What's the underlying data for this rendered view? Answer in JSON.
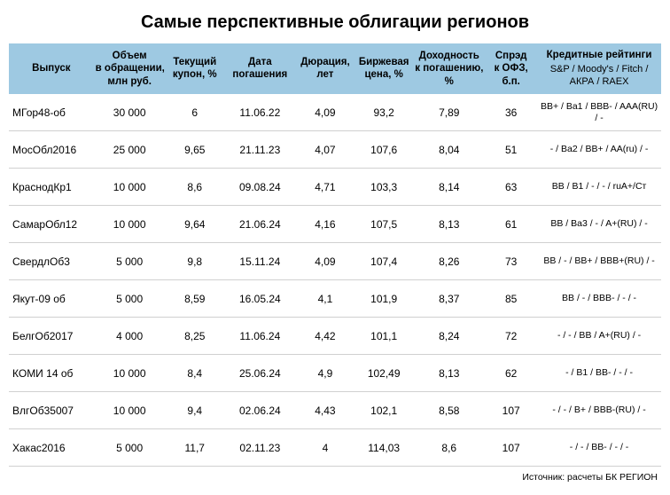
{
  "title": "Самые перспективные облигации регионов",
  "source": "Источник: расчеты БК РЕГИОН",
  "colors": {
    "header_bg": "#9ec9e2",
    "row_border": "#d0d0d0",
    "background": "#ffffff"
  },
  "layout": {
    "col_widths_pct": [
      13,
      11,
      9,
      11,
      9,
      9,
      11,
      8,
      19
    ]
  },
  "columns": [
    {
      "label": "Выпуск"
    },
    {
      "label": "Объем в обращении, млн руб."
    },
    {
      "label": "Текущий купон, %"
    },
    {
      "label": "Дата погашения"
    },
    {
      "label": "Дюрация, лет"
    },
    {
      "label": "Биржевая цена, %"
    },
    {
      "label": "Доходность к погашению, %"
    },
    {
      "label": "Спрэд к ОФЗ, б.п."
    },
    {
      "label": "Кредитные рейтинги",
      "sublabel": "S&P / Moody's / Fitch / АКРА / RAEX"
    }
  ],
  "rows": [
    {
      "name": "МГор48-об",
      "volume": "30 000",
      "coupon": "6",
      "maturity": "11.06.22",
      "duration": "4,09",
      "price": "93,2",
      "yield": "7,89",
      "spread": "36",
      "ratings": "BB+ / Ba1 / BBB- / AAA(RU) / -"
    },
    {
      "name": "МосОбл2016",
      "volume": "25 000",
      "coupon": "9,65",
      "maturity": "21.11.23",
      "duration": "4,07",
      "price": "107,6",
      "yield": "8,04",
      "spread": "51",
      "ratings": "- / Ba2 / BB+ / AA(ru) / -"
    },
    {
      "name": "КраснодКр1",
      "volume": "10 000",
      "coupon": "8,6",
      "maturity": "09.08.24",
      "duration": "4,71",
      "price": "103,3",
      "yield": "8,14",
      "spread": "63",
      "ratings": "BB / B1 / - / - / ruA+/Ст"
    },
    {
      "name": "СамарОбл12",
      "volume": "10 000",
      "coupon": "9,64",
      "maturity": "21.06.24",
      "duration": "4,16",
      "price": "107,5",
      "yield": "8,13",
      "spread": "61",
      "ratings": "BB / Ba3 / - / A+(RU) / -"
    },
    {
      "name": "СвердлОб3",
      "volume": "5 000",
      "coupon": "9,8",
      "maturity": "15.11.24",
      "duration": "4,09",
      "price": "107,4",
      "yield": "8,26",
      "spread": "73",
      "ratings": "BB / - / BB+ / BBB+(RU) / -"
    },
    {
      "name": "Якут-09 об",
      "volume": "5 000",
      "coupon": "8,59",
      "maturity": "16.05.24",
      "duration": "4,1",
      "price": "101,9",
      "yield": "8,37",
      "spread": "85",
      "ratings": "BB / - / BBB- / - / -"
    },
    {
      "name": "БелгОб2017",
      "volume": "4 000",
      "coupon": "8,25",
      "maturity": "11.06.24",
      "duration": "4,42",
      "price": "101,1",
      "yield": "8,24",
      "spread": "72",
      "ratings": "- / - / BB / A+(RU) / -"
    },
    {
      "name": "КОМИ 14 об",
      "volume": "10 000",
      "coupon": "8,4",
      "maturity": "25.06.24",
      "duration": "4,9",
      "price": "102,49",
      "yield": "8,13",
      "spread": "62",
      "ratings": "- / B1 / BB- / - / -"
    },
    {
      "name": "ВлгОб35007",
      "volume": "10 000",
      "coupon": "9,4",
      "maturity": "02.06.24",
      "duration": "4,43",
      "price": "102,1",
      "yield": "8,58",
      "spread": "107",
      "ratings": "- / - / B+ / BBB-(RU) / -"
    },
    {
      "name": "Хакас2016",
      "volume": "5 000",
      "coupon": "11,7",
      "maturity": "02.11.23",
      "duration": "4",
      "price": "114,03",
      "yield": "8,6",
      "spread": "107",
      "ratings": "- / - / BB- / - / -"
    }
  ]
}
